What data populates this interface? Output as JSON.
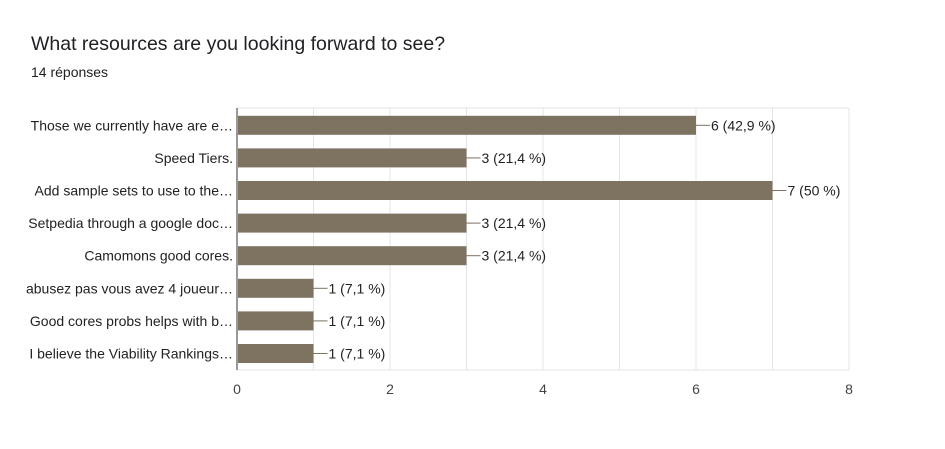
{
  "question": {
    "title": "What resources are you looking forward to see?",
    "responses": "14 réponses"
  },
  "chart_data": {
    "type": "bar",
    "orientation": "horizontal",
    "title": "What resources are you looking forward to see?",
    "categories": [
      "Those we currently have are e…",
      "Speed Tiers.",
      "Add sample sets to use to the…",
      "Setpedia through a google doc…",
      "Camomons good cores.",
      "abusez pas vous avez 4 joueur…",
      "Good cores probs helps with b…",
      "I believe the Viability Rankings…"
    ],
    "values": [
      6,
      3,
      7,
      3,
      3,
      1,
      1,
      1
    ],
    "value_labels": [
      "6 (42,9 %)",
      "3 (21,4 %)",
      "7 (50 %)",
      "3 (21,4 %)",
      "3 (21,4 %)",
      "1 (7,1 %)",
      "1 (7,1 %)",
      "1 (7,1 %)"
    ],
    "xlim": [
      0,
      8
    ],
    "xticks": [
      0,
      2,
      4,
      6,
      8
    ],
    "grid": true,
    "bar_color": "#7e7260"
  }
}
